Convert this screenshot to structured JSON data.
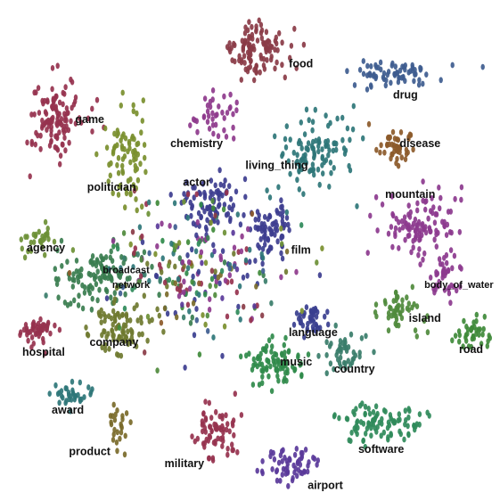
{
  "chart_data": {
    "type": "scatter",
    "title": "",
    "xlabel": "",
    "ylabel": "",
    "grid": false,
    "legend": "none",
    "x_range": [
      0,
      100
    ],
    "y_range": [
      0,
      100
    ],
    "clusters": [
      {
        "label": "food",
        "color": "#8a3b46",
        "center": [
          51.5,
          8.5
        ],
        "spread": [
          6.0,
          5.0
        ],
        "count": 110
      },
      {
        "label": "drug",
        "color": "#3e5c8f",
        "center": [
          79.5,
          13.5
        ],
        "spread": [
          7.5,
          2.5
        ],
        "count": 70
      },
      {
        "label": "game",
        "color": "#96324e",
        "center": [
          10.0,
          22.5
        ],
        "spread": [
          4.5,
          6.5
        ],
        "count": 120
      },
      {
        "label": "chemistry",
        "color": "#8e3a8c",
        "center": [
          43.5,
          22.0
        ],
        "spread": [
          4.5,
          4.5
        ],
        "count": 40
      },
      {
        "label": "disease",
        "color": "#8c5a2a",
        "center": [
          79.5,
          28.0
        ],
        "spread": [
          3.5,
          3.0
        ],
        "count": 45
      },
      {
        "label": "living_thing",
        "color": "#2e7678",
        "center": [
          63.0,
          29.5
        ],
        "spread": [
          6.5,
          7.0
        ],
        "count": 110
      },
      {
        "label": "politician",
        "color": "#7a8f2e",
        "center": [
          24.5,
          30.0
        ],
        "spread": [
          3.5,
          8.0
        ],
        "count": 80
      },
      {
        "label": "actor",
        "color": "#3d3d8f",
        "center": [
          42.5,
          40.0
        ],
        "spread": [
          6.0,
          4.5
        ],
        "count": 90
      },
      {
        "label": "mountain",
        "color": "#8c3a8e",
        "center": [
          84.5,
          45.0
        ],
        "spread": [
          7.0,
          6.0
        ],
        "count": 110
      },
      {
        "label": "film",
        "color": "#3d3d8f",
        "center": [
          54.5,
          45.5
        ],
        "spread": [
          3.5,
          4.0
        ],
        "count": 70
      },
      {
        "label": "agency",
        "color": "#6d9036",
        "center": [
          7.0,
          47.5
        ],
        "spread": [
          3.5,
          2.5
        ],
        "count": 30
      },
      {
        "label": "broadcast network",
        "color": "#3a7d4f",
        "center": [
          19.0,
          55.0
        ],
        "spread": [
          7.5,
          5.5
        ],
        "count": 110
      },
      {
        "label": "body_of_water",
        "color": "#8c3a8e",
        "center": [
          90.0,
          55.0
        ],
        "spread": [
          2.5,
          3.5
        ],
        "count": 40
      },
      {
        "label": "island",
        "color": "#4f8a3c",
        "center": [
          80.5,
          62.5
        ],
        "spread": [
          4.5,
          4.0
        ],
        "count": 50
      },
      {
        "label": "language",
        "color": "#3a3f8f",
        "center": [
          63.0,
          64.0
        ],
        "spread": [
          3.0,
          3.0
        ],
        "count": 40
      },
      {
        "label": "hospital",
        "color": "#96324e",
        "center": [
          6.0,
          66.5
        ],
        "spread": [
          3.5,
          2.5
        ],
        "count": 50
      },
      {
        "label": "company",
        "color": "#6f7a30",
        "center": [
          24.0,
          65.5
        ],
        "spread": [
          5.0,
          5.0
        ],
        "count": 90
      },
      {
        "label": "road",
        "color": "#3f8a3a",
        "center": [
          96.0,
          67.0
        ],
        "spread": [
          3.0,
          3.0
        ],
        "count": 40
      },
      {
        "label": "country",
        "color": "#3a7d6a",
        "center": [
          69.5,
          70.5
        ],
        "spread": [
          4.0,
          3.5
        ],
        "count": 45
      },
      {
        "label": "music",
        "color": "#2f8a4a",
        "center": [
          55.0,
          73.0
        ],
        "spread": [
          5.0,
          3.5
        ],
        "count": 85
      },
      {
        "label": "award",
        "color": "#2e7678",
        "center": [
          14.0,
          79.5
        ],
        "spread": [
          3.5,
          2.0
        ],
        "count": 35
      },
      {
        "label": "software",
        "color": "#2f8a5a",
        "center": [
          76.5,
          85.5
        ],
        "spread": [
          7.0,
          3.0
        ],
        "count": 95
      },
      {
        "label": "product",
        "color": "#7a6a2a",
        "center": [
          23.0,
          86.5
        ],
        "spread": [
          2.0,
          4.0
        ],
        "count": 25
      },
      {
        "label": "military",
        "color": "#96324e",
        "center": [
          42.5,
          87.5
        ],
        "spread": [
          3.5,
          5.0
        ],
        "count": 70
      },
      {
        "label": "airport",
        "color": "#5a3a9a",
        "center": [
          58.5,
          94.0
        ],
        "spread": [
          5.0,
          3.0
        ],
        "count": 60
      },
      {
        "label": "",
        "color": "#4b4b8f",
        "center": [
          40.0,
          55.0
        ],
        "spread": [
          16.0,
          12.0
        ],
        "count": 260
      }
    ],
    "labels": [
      {
        "text": "food",
        "x": 60.5,
        "y": 12.0
      },
      {
        "text": "drug",
        "x": 82.0,
        "y": 18.5
      },
      {
        "text": "game",
        "x": 17.0,
        "y": 23.5
      },
      {
        "text": "chemistry",
        "x": 39.0,
        "y": 28.5
      },
      {
        "text": "disease",
        "x": 85.0,
        "y": 28.5
      },
      {
        "text": "living_thing",
        "x": 55.5,
        "y": 33.0
      },
      {
        "text": "politician",
        "x": 21.5,
        "y": 37.5
      },
      {
        "text": "actor",
        "x": 39.0,
        "y": 36.5
      },
      {
        "text": "mountain",
        "x": 83.0,
        "y": 39.0
      },
      {
        "text": "film",
        "x": 60.5,
        "y": 50.5
      },
      {
        "text": "agency",
        "x": 8.0,
        "y": 50.0
      },
      {
        "text": "broadcast",
        "x": 24.5,
        "y": 54.5,
        "small": true
      },
      {
        "text": "network",
        "x": 25.5,
        "y": 57.5,
        "small": true
      },
      {
        "text": "body_of_water",
        "x": 93.0,
        "y": 57.5,
        "small": true
      },
      {
        "text": "island",
        "x": 86.0,
        "y": 64.5
      },
      {
        "text": "language",
        "x": 63.0,
        "y": 67.5
      },
      {
        "text": "hospital",
        "x": 7.5,
        "y": 71.5
      },
      {
        "text": "company",
        "x": 22.0,
        "y": 69.5
      },
      {
        "text": "road",
        "x": 95.5,
        "y": 71.0
      },
      {
        "text": "country",
        "x": 71.5,
        "y": 75.0
      },
      {
        "text": "music",
        "x": 59.5,
        "y": 73.5
      },
      {
        "text": "award",
        "x": 12.5,
        "y": 83.5
      },
      {
        "text": "software",
        "x": 77.0,
        "y": 91.5
      },
      {
        "text": "product",
        "x": 17.0,
        "y": 92.0
      },
      {
        "text": "military",
        "x": 36.5,
        "y": 94.5
      },
      {
        "text": "airport",
        "x": 65.5,
        "y": 99.0
      }
    ]
  }
}
